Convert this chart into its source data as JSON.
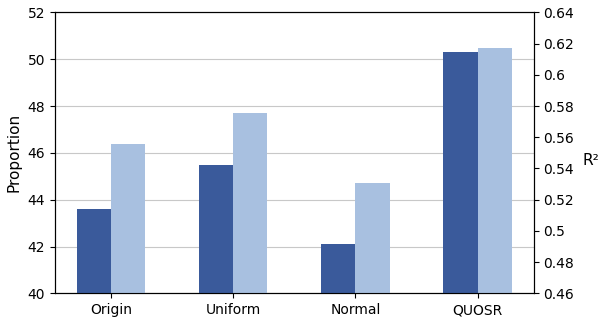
{
  "categories": [
    "Origin",
    "Uniform",
    "Normal",
    "QUOSR"
  ],
  "dark_values": [
    43.6,
    45.5,
    42.1,
    50.3
  ],
  "light_values": [
    46.4,
    47.7,
    44.7,
    50.5
  ],
  "dark_color": "#3a5a9b",
  "light_color": "#a8c0e0",
  "ylim_left": [
    40,
    52
  ],
  "ylim_right": [
    0.46,
    0.64
  ],
  "yticks_left": [
    40,
    42,
    44,
    46,
    48,
    50,
    52
  ],
  "yticks_right": [
    0.46,
    0.48,
    0.5,
    0.52,
    0.54,
    0.56,
    0.58,
    0.6,
    0.62,
    0.64
  ],
  "ylabel_left": "Proportion",
  "ylabel_right": "R²",
  "bar_width": 0.28,
  "background_color": "#ffffff",
  "grid_color": "#c8c8c8"
}
